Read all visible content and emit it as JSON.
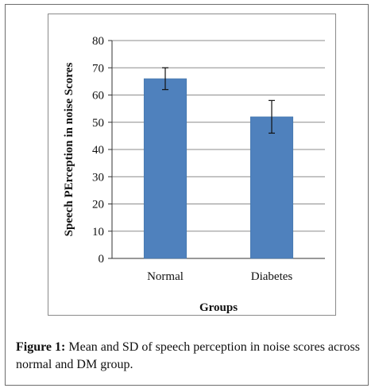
{
  "chart_data": {
    "type": "bar",
    "categories": [
      "Normal",
      "Diabetes"
    ],
    "values": [
      66,
      52
    ],
    "error_bars": [
      {
        "lower": 62,
        "upper": 70
      },
      {
        "lower": 46,
        "upper": 58
      }
    ],
    "title": "",
    "xlabel": "Groups",
    "ylabel": "Speech PErception in noise Scores",
    "ylim": [
      0,
      80
    ],
    "yticks": [
      0,
      10,
      20,
      30,
      40,
      50,
      60,
      70,
      80
    ],
    "grid": true,
    "bar_color": "#4f81bd",
    "legend": "none"
  },
  "caption": {
    "label": "Figure 1:",
    "text": " Mean and SD of speech perception in noise scores across normal and DM group."
  }
}
